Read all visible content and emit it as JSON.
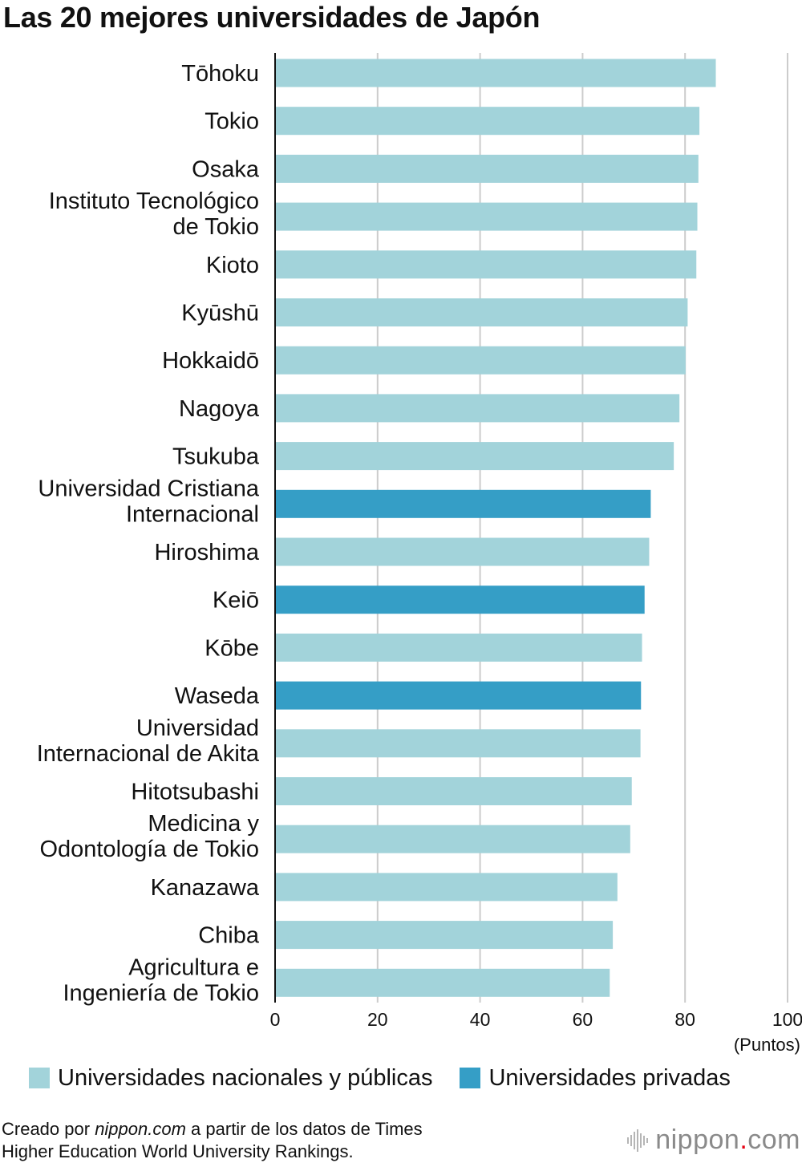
{
  "title": "Las 20 mejores universidades de Japón",
  "colors": {
    "public": "#a2d3da",
    "private": "#359ec6",
    "grid": "#cccccc",
    "axis": "#111111"
  },
  "legend": {
    "public_label": "Universidades nacionales y públicas",
    "private_label": "Universidades privadas"
  },
  "credit": {
    "prefix": "Creado por ",
    "source_site": "nippon.com",
    "suffix_line1": " a partir de los datos de Times",
    "line2": "Higher Education World University Rankings."
  },
  "logo": {
    "name": "nippon",
    "dot": ".",
    "tld": "com",
    "icon": "sound-wave-icon"
  },
  "chart_data": {
    "type": "bar",
    "orientation": "horizontal",
    "title": "Las 20 mejores universidades de Japón",
    "xlabel": "(Puntos)",
    "ylabel": "",
    "xlim": [
      0,
      100
    ],
    "xticks": [
      0,
      20,
      40,
      60,
      80,
      100
    ],
    "grid": true,
    "legend_position": "bottom",
    "categories": [
      [
        "Tōhoku"
      ],
      [
        "Tokio"
      ],
      [
        "Osaka"
      ],
      [
        "Instituto Tecnológico",
        "de Tokio"
      ],
      [
        "Kioto"
      ],
      [
        "Kyūshū"
      ],
      [
        "Hokkaidō"
      ],
      [
        "Nagoya"
      ],
      [
        "Tsukuba"
      ],
      [
        "Universidad Cristiana",
        "Internacional"
      ],
      [
        "Hiroshima"
      ],
      [
        "Keiō"
      ],
      [
        "Kōbe"
      ],
      [
        "Waseda"
      ],
      [
        "Universidad",
        "Internacional de Akita"
      ],
      [
        "Hitotsubashi"
      ],
      [
        "Medicina y",
        "Odontología de Tokio"
      ],
      [
        "Kanazawa"
      ],
      [
        "Chiba"
      ],
      [
        "Agricultura e",
        "Ingeniería de Tokio"
      ]
    ],
    "values": [
      86.0,
      82.8,
      82.6,
      82.4,
      82.2,
      80.5,
      80.1,
      78.9,
      77.8,
      73.3,
      73.0,
      72.1,
      71.6,
      71.4,
      71.3,
      69.6,
      69.3,
      66.8,
      65.9,
      65.3
    ],
    "types": [
      "public",
      "public",
      "public",
      "public",
      "public",
      "public",
      "public",
      "public",
      "public",
      "private",
      "public",
      "private",
      "public",
      "private",
      "public",
      "public",
      "public",
      "public",
      "public",
      "public"
    ],
    "series": [
      {
        "name": "Universidades nacionales y públicas",
        "key": "public"
      },
      {
        "name": "Universidades privadas",
        "key": "private"
      }
    ]
  }
}
